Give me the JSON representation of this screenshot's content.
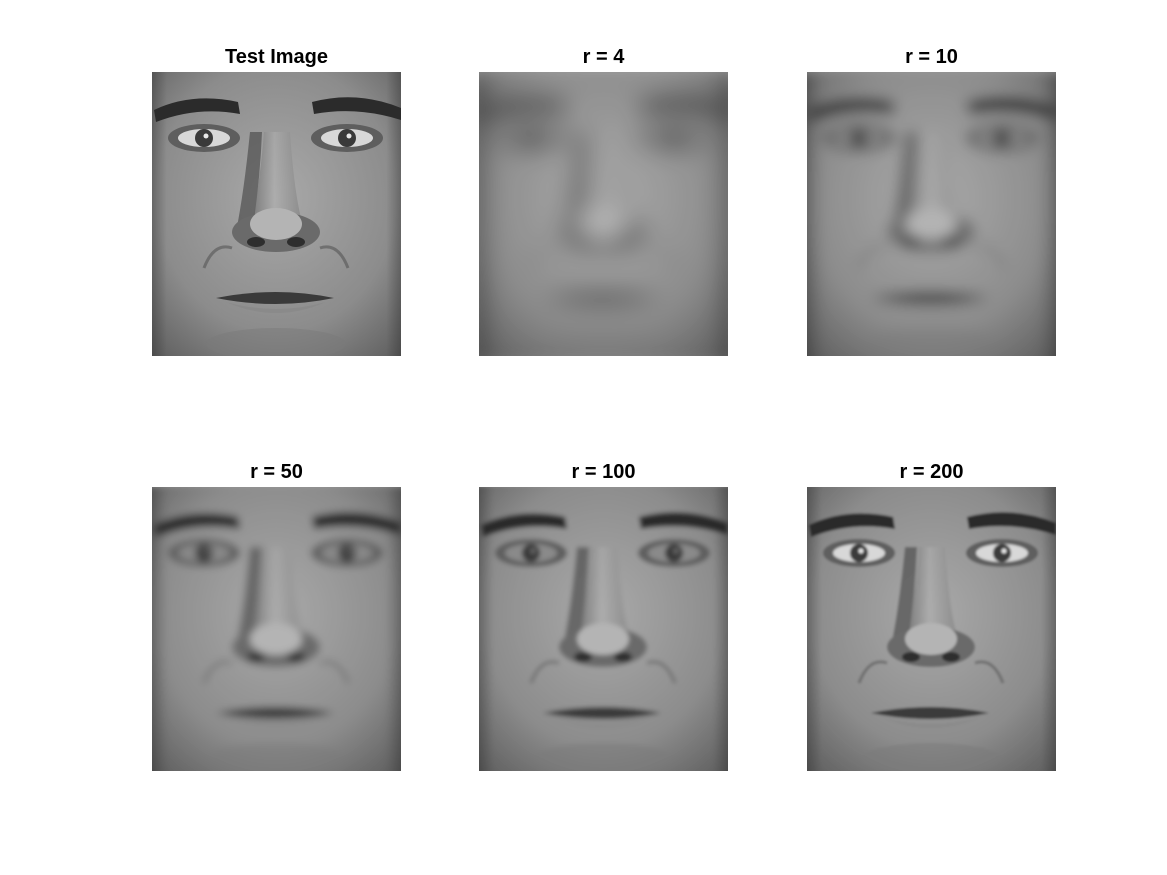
{
  "panels": [
    {
      "title": "Test Image",
      "image": "grayscale-face-original"
    },
    {
      "title": "r = 4",
      "image": "grayscale-face-reconstruction"
    },
    {
      "title": "r = 10",
      "image": "grayscale-face-reconstruction"
    },
    {
      "title": "r = 50",
      "image": "grayscale-face-reconstruction"
    },
    {
      "title": "r = 100",
      "image": "grayscale-face-reconstruction"
    },
    {
      "title": "r = 200",
      "image": "grayscale-face-reconstruction"
    }
  ]
}
